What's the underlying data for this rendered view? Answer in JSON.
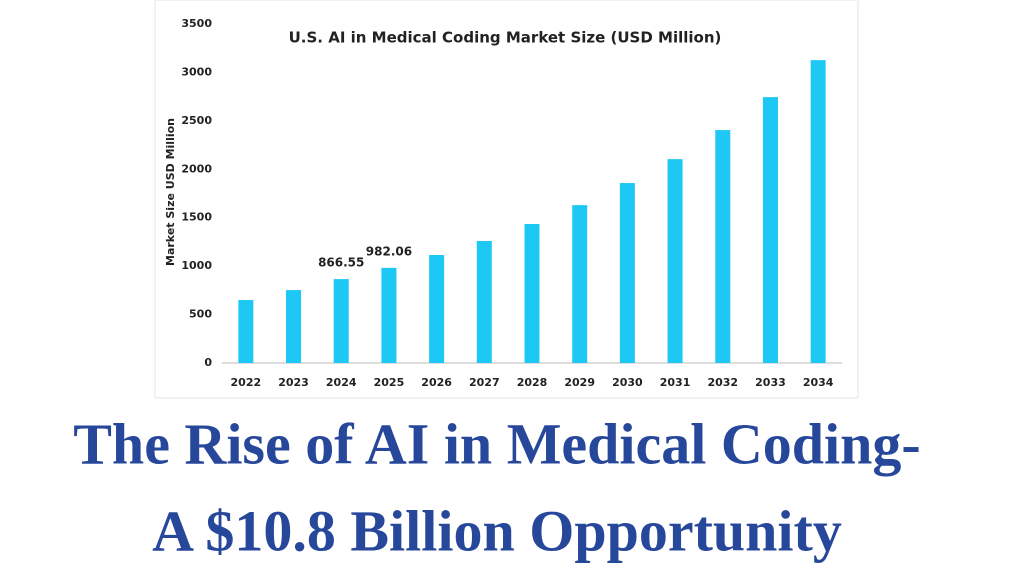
{
  "chart_data": {
    "type": "bar",
    "title": "U.S. AI in Medical Coding Market Size (USD Million)",
    "y_label": "Market Size USD Million",
    "categories": [
      "2022",
      "2023",
      "2024",
      "2025",
      "2026",
      "2027",
      "2028",
      "2029",
      "2030",
      "2031",
      "2032",
      "2033",
      "2034"
    ],
    "values": [
      650,
      753,
      866.55,
      982.06,
      1115,
      1260,
      1435,
      1630,
      1858,
      2105,
      2405,
      2745,
      3127
    ],
    "value_labels": [
      null,
      null,
      "866.55",
      "982.06",
      null,
      null,
      null,
      null,
      null,
      null,
      null,
      null,
      null
    ],
    "color": "#1ec8f5",
    "ylim": [
      0,
      3500
    ],
    "yticks": [
      0,
      500,
      1000,
      1500,
      2000,
      2500,
      3000,
      3500
    ],
    "grid": false
  },
  "headline": {
    "lines": [
      "The Rise of AI in Medical Coding-",
      "A $10.8 Billion Opportunity"
    ],
    "color": "#27479a"
  }
}
